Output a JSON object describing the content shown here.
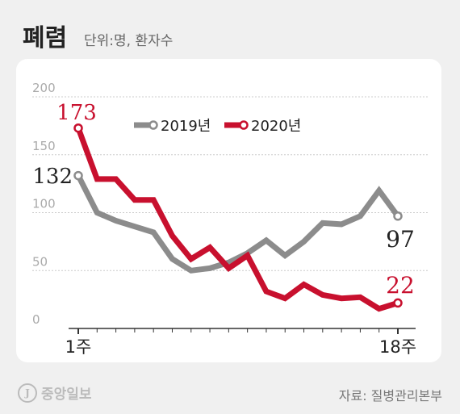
{
  "title": "폐렴",
  "unit": "단위:명, 환자수",
  "source": "자료: 질병관리본부",
  "logo": {
    "mark": "J",
    "text": "중앙일보"
  },
  "colors": {
    "series_2019": "#8c8c8c",
    "series_2020": "#c8102e",
    "grid": "#cccccc",
    "card": "#ffffff",
    "background": "#f0f0f0"
  },
  "chart_data": {
    "type": "line",
    "title": "폐렴",
    "ylim": [
      0,
      200
    ],
    "yticks": [
      0,
      50,
      100,
      150,
      200
    ],
    "x": [
      1,
      2,
      3,
      4,
      5,
      6,
      7,
      8,
      9,
      10,
      11,
      12,
      13,
      14,
      15,
      16,
      17,
      18
    ],
    "x_tick_labels": {
      "first": "1주",
      "last": "18주"
    },
    "legend_position": "top-center",
    "grid": true,
    "series": [
      {
        "name": "2019년",
        "values": [
          132,
          100,
          93,
          88,
          83,
          60,
          50,
          52,
          57,
          65,
          76,
          63,
          75,
          91,
          90,
          97,
          119,
          97
        ],
        "labels": {
          "first": "132",
          "last": "97"
        }
      },
      {
        "name": "2020년",
        "values": [
          173,
          129,
          129,
          111,
          111,
          80,
          60,
          70,
          52,
          63,
          32,
          26,
          38,
          29,
          26,
          27,
          17,
          22
        ],
        "labels": {
          "first": "173",
          "last": "22"
        }
      }
    ]
  }
}
